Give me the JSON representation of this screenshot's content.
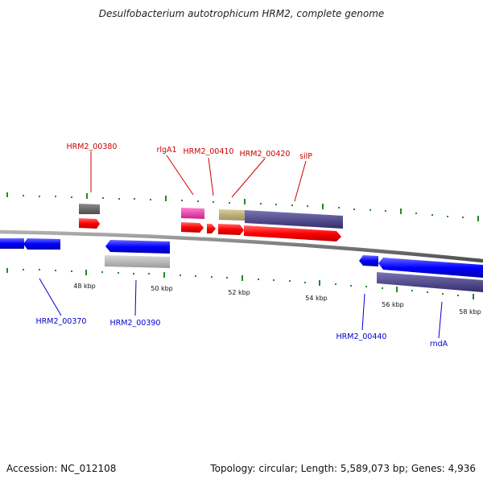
{
  "header": {
    "title": "Desulfobacterium autotrophicum HRM2, complete genome"
  },
  "footer": {
    "accession": "Accession: NC_012108",
    "topology": "Topology: circular; Length: 5,589,073 bp; Genes: 4,936"
  },
  "colors": {
    "forward_label": "#cc0000",
    "reverse_label": "#0000cc",
    "forward_gene": "#ff0000",
    "reverse_gene": "#0000ff",
    "backbone": "#808080",
    "ticks": "#228b22"
  },
  "scale": {
    "labels": [
      "48 kbp",
      "50 kbp",
      "52 kbp",
      "54 kbp",
      "56 kbp",
      "58 kbp"
    ]
  },
  "genes_top": [
    "HRM2_00380",
    "rlgA1",
    "HRM2_00410",
    "HRM2_00420",
    "silP"
  ],
  "genes_bottom": [
    "HRM2_00370",
    "HRM2_00390",
    "HRM2_00440",
    "rndA"
  ]
}
